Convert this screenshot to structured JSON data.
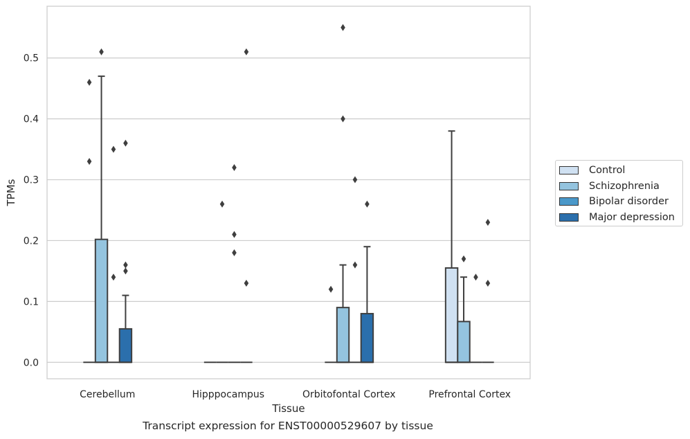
{
  "chart_data": {
    "type": "box",
    "title": "Transcript expression for ENST00000529607 by tissue",
    "xlabel": "Tissue",
    "ylabel": "TPMs",
    "ylim": [
      -0.027,
      0.585
    ],
    "yticks": [
      "0.0",
      "0.1",
      "0.2",
      "0.3",
      "0.4",
      "0.5"
    ],
    "grid": true,
    "legend_position": "right-outside",
    "categories": [
      "Cerebellum",
      "Hipppocampus",
      "Orbitofontal Cortex",
      "Prefrontal Cortex"
    ],
    "series": [
      {
        "name": "Control",
        "color": "#d0e1f2",
        "boxes": [
          {
            "q1": 0,
            "median": 0,
            "q3": 0,
            "whisker_low": 0,
            "whisker_high": 0,
            "outliers": [
              0.33,
              0.46
            ]
          },
          {
            "q1": 0,
            "median": 0,
            "q3": 0,
            "whisker_low": 0,
            "whisker_high": 0,
            "outliers": []
          },
          {
            "q1": 0,
            "median": 0,
            "q3": 0,
            "whisker_low": 0,
            "whisker_high": 0,
            "outliers": [
              0.12
            ]
          },
          {
            "q1": 0,
            "median": 0,
            "q3": 0.155,
            "whisker_low": 0,
            "whisker_high": 0.38,
            "outliers": []
          }
        ]
      },
      {
        "name": "Schizophrenia",
        "color": "#94c4df",
        "boxes": [
          {
            "q1": 0,
            "median": 0,
            "q3": 0.202,
            "whisker_low": 0,
            "whisker_high": 0.47,
            "outliers": [
              0.51
            ]
          },
          {
            "q1": 0,
            "median": 0,
            "q3": 0,
            "whisker_low": 0,
            "whisker_high": 0,
            "outliers": [
              0.26
            ]
          },
          {
            "q1": 0,
            "median": 0,
            "q3": 0.09,
            "whisker_low": 0,
            "whisker_high": 0.16,
            "outliers": [
              0.4,
              0.55
            ]
          },
          {
            "q1": 0,
            "median": 0,
            "q3": 0.067,
            "whisker_low": 0,
            "whisker_high": 0.14,
            "outliers": [
              0.17
            ]
          }
        ]
      },
      {
        "name": "Bipolar disorder",
        "color": "#4a98c9",
        "boxes": [
          {
            "q1": 0,
            "median": 0,
            "q3": 0,
            "whisker_low": 0,
            "whisker_high": 0,
            "outliers": [
              0.14,
              0.35
            ]
          },
          {
            "q1": 0,
            "median": 0,
            "q3": 0,
            "whisker_low": 0,
            "whisker_high": 0,
            "outliers": [
              0.18,
              0.21,
              0.32
            ]
          },
          {
            "q1": 0,
            "median": 0,
            "q3": 0,
            "whisker_low": 0,
            "whisker_high": 0,
            "outliers": [
              0.16,
              0.3
            ]
          },
          {
            "q1": 0,
            "median": 0,
            "q3": 0,
            "whisker_low": 0,
            "whisker_high": 0,
            "outliers": [
              0.14
            ]
          }
        ]
      },
      {
        "name": "Major depression",
        "color": "#2b6fac",
        "boxes": [
          {
            "q1": 0,
            "median": 0,
            "q3": 0.055,
            "whisker_low": 0,
            "whisker_high": 0.11,
            "outliers": [
              0.15,
              0.16,
              0.36
            ]
          },
          {
            "q1": 0,
            "median": 0,
            "q3": 0,
            "whisker_low": 0,
            "whisker_high": 0,
            "outliers": [
              0.13,
              0.51
            ]
          },
          {
            "q1": 0,
            "median": 0,
            "q3": 0.08,
            "whisker_low": 0,
            "whisker_high": 0.19,
            "outliers": [
              0.26
            ]
          },
          {
            "q1": 0,
            "median": 0,
            "q3": 0,
            "whisker_low": 0,
            "whisker_high": 0,
            "outliers": [
              0.13,
              0.23
            ]
          }
        ]
      }
    ]
  }
}
